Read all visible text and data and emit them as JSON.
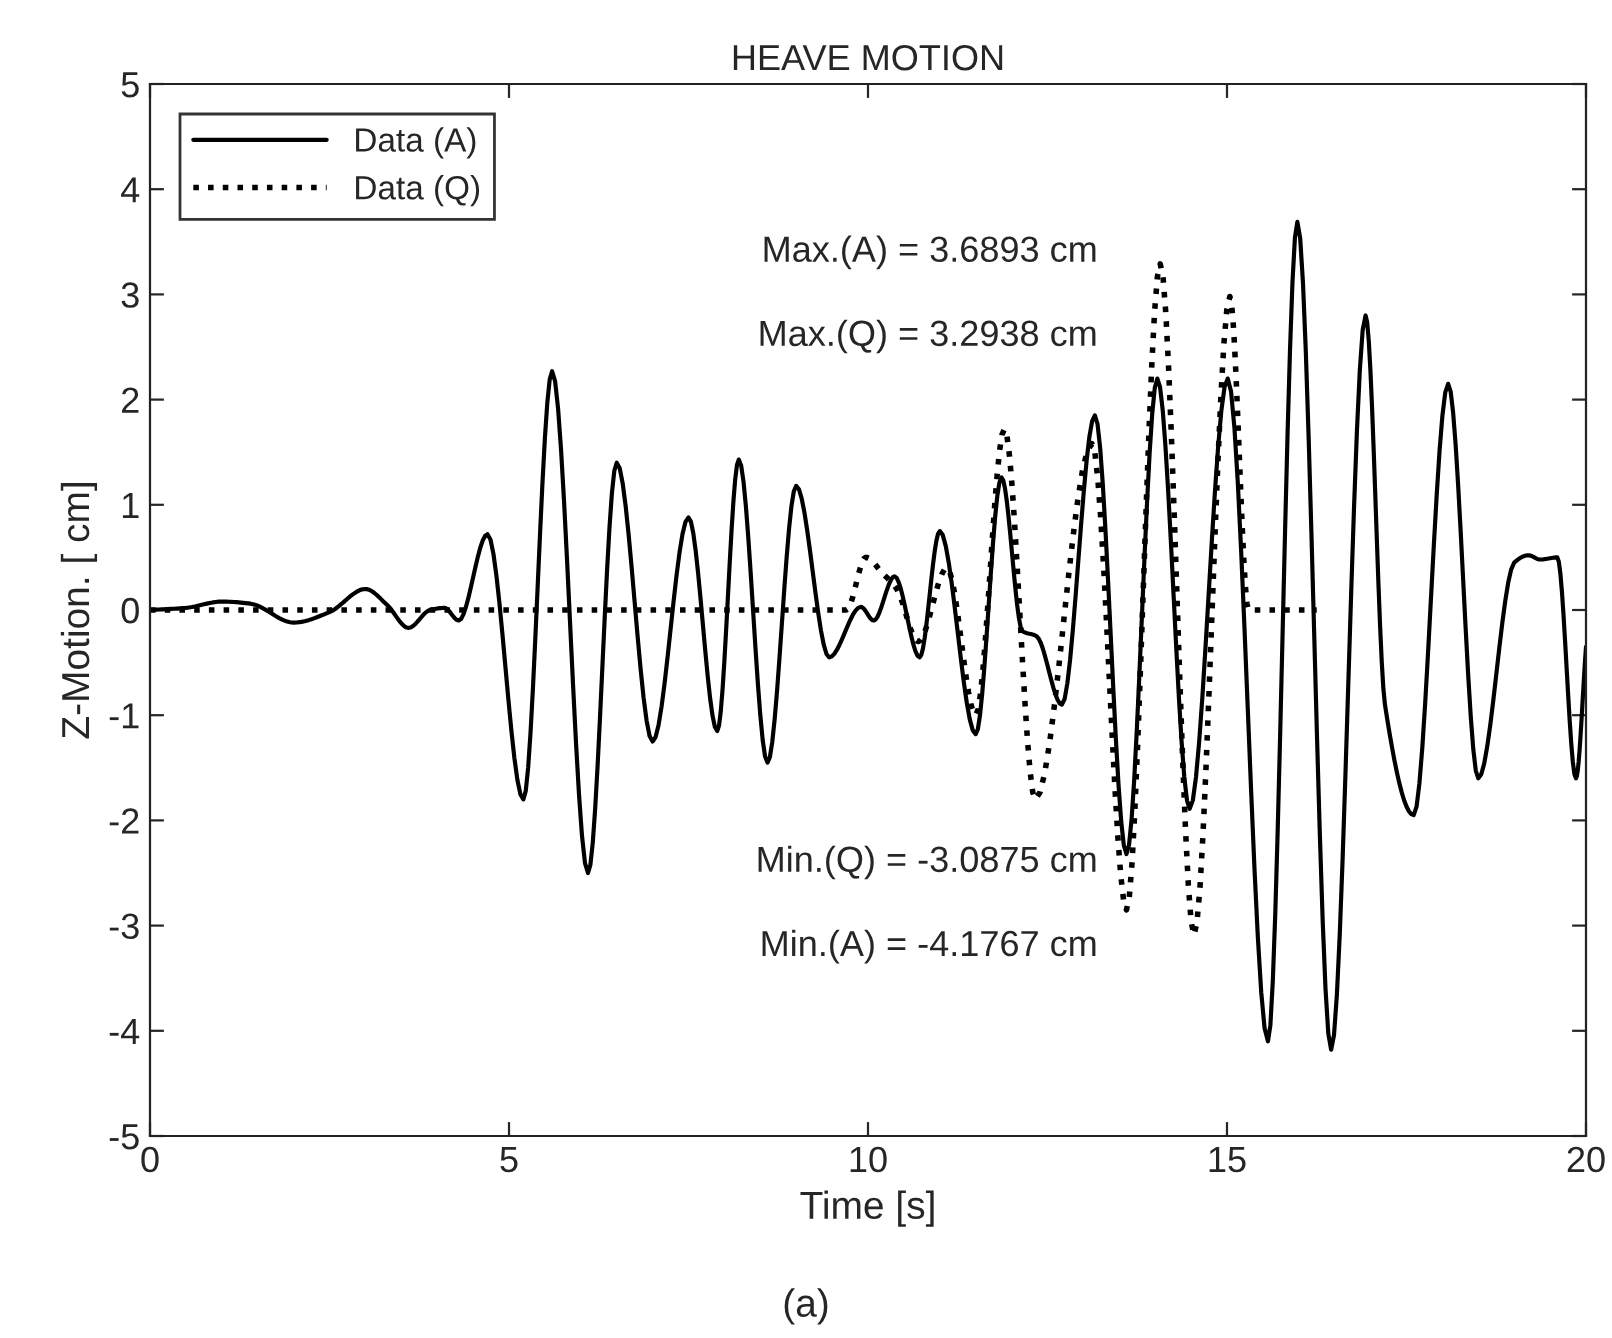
{
  "chart_data": {
    "type": "line",
    "title": "HEAVE MOTION",
    "xlabel": "Time [s]",
    "ylabel": "Z-Motion. [ cm]",
    "xlim": [
      0,
      20
    ],
    "xticks": [
      0,
      5,
      10,
      15,
      20
    ],
    "ylim": [
      -5,
      5
    ],
    "yticks": [
      -5,
      -4,
      -3,
      -2,
      -1,
      0,
      1,
      2,
      3,
      4,
      5
    ],
    "grid": false,
    "legend": "top left",
    "series": [
      {
        "name": "Data (A)",
        "color": "#000000",
        "line_style": "solid",
        "x": [
          0,
          0.5,
          1.0,
          1.4,
          2.0,
          2.5,
          3.0,
          3.3,
          3.6,
          3.9,
          4.1,
          4.3,
          4.7,
          5.2,
          5.6,
          6.1,
          6.5,
          7.0,
          7.5,
          7.9,
          8.2,
          8.6,
          9.0,
          9.46,
          9.9,
          10.08,
          10.37,
          10.72,
          11.0,
          11.5,
          11.86,
          12.15,
          12.35,
          12.7,
          13.16,
          13.6,
          14.03,
          14.48,
          15.01,
          15.57,
          15.98,
          16.45,
          16.93,
          17.2,
          17.6,
          18.08,
          18.5,
          19.0,
          19.2,
          19.36,
          19.6,
          19.86,
          20.0
        ],
        "values": [
          0,
          0.02,
          0.08,
          0.06,
          -0.12,
          -0.02,
          0.2,
          0.05,
          -0.17,
          0.0,
          0.02,
          -0.1,
          0.72,
          -1.8,
          2.27,
          -2.5,
          1.4,
          -1.25,
          0.88,
          -1.15,
          1.43,
          -1.45,
          1.18,
          -0.45,
          0.03,
          -0.1,
          0.32,
          -0.45,
          0.75,
          -1.18,
          1.26,
          -0.2,
          -0.25,
          -0.9,
          1.85,
          -2.32,
          2.2,
          -1.89,
          2.2,
          -4.1,
          3.69,
          -4.18,
          2.8,
          -0.9,
          -1.95,
          2.15,
          -1.6,
          0.45,
          0.52,
          0.48,
          0.5,
          -1.6,
          -0.35
        ]
      },
      {
        "name": "Data (Q)",
        "color": "#000000",
        "line_style": "dotted",
        "x": [
          0,
          9.7,
          9.97,
          10.2,
          10.4,
          10.7,
          11.1,
          11.5,
          11.9,
          12.33,
          13.12,
          13.6,
          14.07,
          14.54,
          15.04,
          15.3,
          16.25
        ],
        "values": [
          0,
          0,
          0.5,
          0.35,
          0.2,
          -0.3,
          0.4,
          -1.0,
          1.72,
          -1.8,
          1.58,
          -2.85,
          3.29,
          -3.09,
          2.98,
          0,
          0
        ]
      }
    ],
    "annotations": [
      "Max.(A) = 3.6893 cm",
      "Max.(Q) = 3.2938 cm",
      "Min.(Q) = -3.0875 cm",
      "Min.(A) = -4.1767 cm",
      "(a)"
    ]
  }
}
